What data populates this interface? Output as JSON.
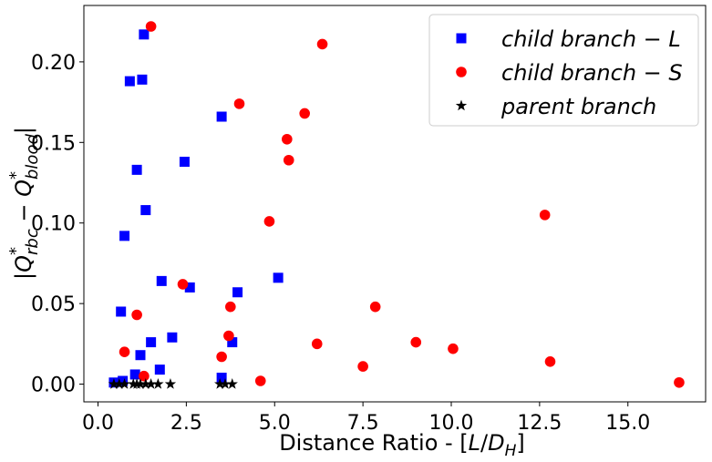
{
  "chart_data": {
    "type": "scatter",
    "xlabel": "Distance Ratio - [L/D_H]",
    "ylabel": "|Q*_rbc − Q*_blood|",
    "xlim": [
      -0.4,
      17.2
    ],
    "ylim": [
      -0.011,
      0.235
    ],
    "xticks": [
      0.0,
      2.5,
      5.0,
      7.5,
      10.0,
      12.5,
      15.0
    ],
    "xtick_labels": [
      "0.0",
      "2.5",
      "5.0",
      "7.5",
      "10.0",
      "12.5",
      "15.0"
    ],
    "yticks": [
      0.0,
      0.05,
      0.1,
      0.15,
      0.2
    ],
    "ytick_labels": [
      "0.00",
      "0.05",
      "0.10",
      "0.15",
      "0.20"
    ],
    "grid": false,
    "legend_position": "top-right",
    "series": [
      {
        "name": "child branch − L",
        "marker": "square",
        "color": "#0000ff",
        "points": [
          [
            0.45,
            0.001
          ],
          [
            0.7,
            0.002
          ],
          [
            1.05,
            0.006
          ],
          [
            1.2,
            0.018
          ],
          [
            1.5,
            0.026
          ],
          [
            1.75,
            0.009
          ],
          [
            2.1,
            0.029
          ],
          [
            0.65,
            0.045
          ],
          [
            0.75,
            0.092
          ],
          [
            1.35,
            0.108
          ],
          [
            1.1,
            0.133
          ],
          [
            0.9,
            0.188
          ],
          [
            1.25,
            0.189
          ],
          [
            1.3,
            0.217
          ],
          [
            1.8,
            0.064
          ],
          [
            2.6,
            0.06
          ],
          [
            2.45,
            0.138
          ],
          [
            3.5,
            0.166
          ],
          [
            3.8,
            0.026
          ],
          [
            3.95,
            0.057
          ],
          [
            3.5,
            0.004
          ],
          [
            5.1,
            0.066
          ]
        ]
      },
      {
        "name": "child branch − S",
        "marker": "circle",
        "color": "#ff0000",
        "points": [
          [
            1.5,
            0.222
          ],
          [
            6.35,
            0.211
          ],
          [
            4.0,
            0.174
          ],
          [
            5.85,
            0.168
          ],
          [
            5.35,
            0.152
          ],
          [
            5.4,
            0.139
          ],
          [
            4.85,
            0.101
          ],
          [
            12.65,
            0.105
          ],
          [
            2.4,
            0.062
          ],
          [
            3.75,
            0.048
          ],
          [
            7.85,
            0.048
          ],
          [
            1.1,
            0.043
          ],
          [
            3.7,
            0.03
          ],
          [
            6.2,
            0.025
          ],
          [
            9.0,
            0.026
          ],
          [
            10.05,
            0.022
          ],
          [
            0.75,
            0.02
          ],
          [
            3.5,
            0.017
          ],
          [
            12.8,
            0.014
          ],
          [
            7.5,
            0.011
          ],
          [
            1.3,
            0.005
          ],
          [
            4.6,
            0.002
          ],
          [
            16.45,
            0.001
          ]
        ]
      },
      {
        "name": "parent branch",
        "marker": "star",
        "color": "#000000",
        "points": [
          [
            0.45,
            0.0
          ],
          [
            0.6,
            0.0
          ],
          [
            0.75,
            0.0
          ],
          [
            1.0,
            0.0
          ],
          [
            1.1,
            0.0
          ],
          [
            1.2,
            0.0
          ],
          [
            1.35,
            0.0
          ],
          [
            1.5,
            0.0
          ],
          [
            1.7,
            0.0
          ],
          [
            2.05,
            0.0
          ],
          [
            3.45,
            0.0
          ],
          [
            3.6,
            0.0
          ],
          [
            3.8,
            0.0
          ]
        ]
      }
    ]
  }
}
